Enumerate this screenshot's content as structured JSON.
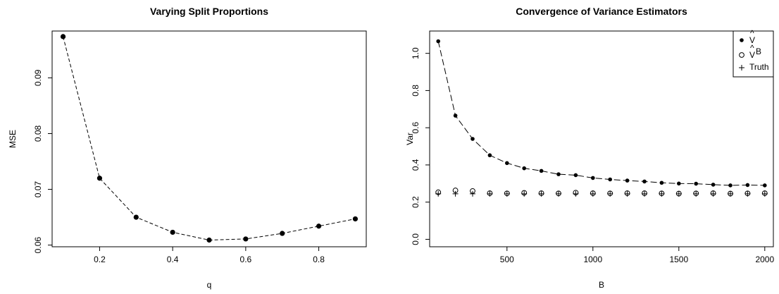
{
  "chart_data": [
    {
      "type": "line",
      "title": "Varying Split Proportions",
      "xlabel": "q",
      "ylabel": "MSE",
      "xlim": [
        0.07,
        0.93
      ],
      "ylim": [
        0.0597,
        0.0984
      ],
      "xticks": [
        0.2,
        0.4,
        0.6,
        0.8
      ],
      "xtick_labels": [
        "0.2",
        "0.4",
        "0.6",
        "0.8"
      ],
      "yticks": [
        0.06,
        0.07,
        0.08,
        0.09
      ],
      "ytick_labels": [
        "0.06",
        "0.07",
        "0.08",
        "0.09"
      ],
      "grid": false,
      "series": [
        {
          "x": [
            0.1,
            0.2,
            0.3,
            0.4,
            0.5,
            0.6,
            0.7,
            0.8,
            0.9
          ],
          "values": [
            0.0974,
            0.072,
            0.065,
            0.0623,
            0.0609,
            0.0611,
            0.0621,
            0.0634,
            0.0647
          ],
          "line_style": "dashed",
          "marker": "filled-circle"
        }
      ]
    },
    {
      "type": "scatter",
      "title": "Convergence of Variance Estimators",
      "xlabel": "B",
      "ylabel": "Var",
      "xlim": [
        50,
        2050
      ],
      "ylim": [
        -0.04,
        1.12
      ],
      "xticks": [
        500,
        1000,
        1500,
        2000
      ],
      "xtick_labels": [
        "500",
        "1000",
        "1500",
        "2000"
      ],
      "yticks": [
        0.0,
        0.2,
        0.4,
        0.6,
        0.8,
        1.0
      ],
      "ytick_labels": [
        "0.0",
        "0.2",
        "0.4",
        "0.6",
        "0.8",
        "1.0"
      ],
      "grid": false,
      "legend_position": "top-right",
      "x": [
        100,
        200,
        300,
        400,
        500,
        600,
        700,
        800,
        900,
        1000,
        1100,
        1200,
        1300,
        1400,
        1500,
        1600,
        1700,
        1800,
        1900,
        2000
      ],
      "series": [
        {
          "legend_base": "V",
          "legend_accent": "^",
          "legend_super": "",
          "marker": "filled-circle",
          "connected": true,
          "values": [
            1.065,
            0.665,
            0.54,
            0.452,
            0.41,
            0.382,
            0.368,
            0.35,
            0.345,
            0.33,
            0.322,
            0.316,
            0.311,
            0.304,
            0.3,
            0.299,
            0.294,
            0.29,
            0.292,
            0.29
          ]
        },
        {
          "legend_base": "V",
          "legend_accent": "^",
          "legend_super": "B",
          "marker": "open-circle",
          "connected": false,
          "values": [
            0.253,
            0.263,
            0.26,
            0.248,
            0.247,
            0.25,
            0.248,
            0.247,
            0.251,
            0.248,
            0.247,
            0.248,
            0.248,
            0.247,
            0.246,
            0.247,
            0.248,
            0.246,
            0.247,
            0.248
          ]
        },
        {
          "name": "Truth",
          "marker": "plus",
          "connected": false,
          "values": [
            0.245,
            0.245,
            0.245,
            0.245,
            0.245,
            0.245,
            0.245,
            0.245,
            0.245,
            0.245,
            0.245,
            0.245,
            0.245,
            0.245,
            0.245,
            0.245,
            0.245,
            0.245,
            0.245,
            0.245
          ]
        }
      ]
    }
  ]
}
